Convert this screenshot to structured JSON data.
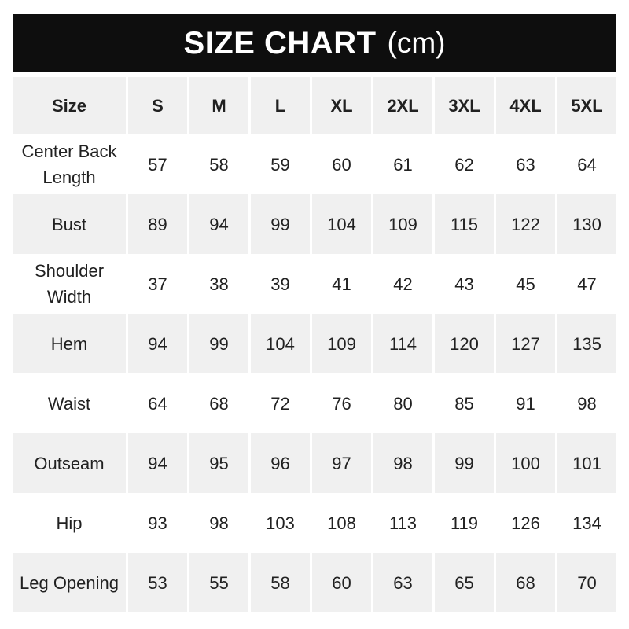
{
  "banner": {
    "title": "SIZE CHART",
    "unit": "(cm)"
  },
  "chart_data": {
    "type": "table",
    "title": "SIZE CHART (cm)",
    "columns": [
      "Size",
      "S",
      "M",
      "L",
      "XL",
      "2XL",
      "3XL",
      "4XL",
      "5XL"
    ],
    "rows": [
      {
        "label": "Center Back Length",
        "values": [
          57,
          58,
          59,
          60,
          61,
          62,
          63,
          64
        ]
      },
      {
        "label": "Bust",
        "values": [
          89,
          94,
          99,
          104,
          109,
          115,
          122,
          130
        ]
      },
      {
        "label": "Shoulder Width",
        "values": [
          37,
          38,
          39,
          41,
          42,
          43,
          45,
          47
        ]
      },
      {
        "label": "Hem",
        "values": [
          94,
          99,
          104,
          109,
          114,
          120,
          127,
          135
        ]
      },
      {
        "label": "Waist",
        "values": [
          64,
          68,
          72,
          76,
          80,
          85,
          91,
          98
        ]
      },
      {
        "label": "Outseam",
        "values": [
          94,
          95,
          96,
          97,
          98,
          99,
          100,
          101
        ]
      },
      {
        "label": "Hip",
        "values": [
          93,
          98,
          103,
          108,
          113,
          119,
          126,
          134
        ]
      },
      {
        "label": "Leg Opening",
        "values": [
          53,
          55,
          58,
          60,
          63,
          65,
          68,
          70
        ]
      }
    ]
  },
  "colors": {
    "banner_bg": "#0e0e0e",
    "banner_text": "#ffffff",
    "row_alt_bg": "#f0f0f0",
    "cell_text": "#212121",
    "page_bg": "#ffffff"
  }
}
